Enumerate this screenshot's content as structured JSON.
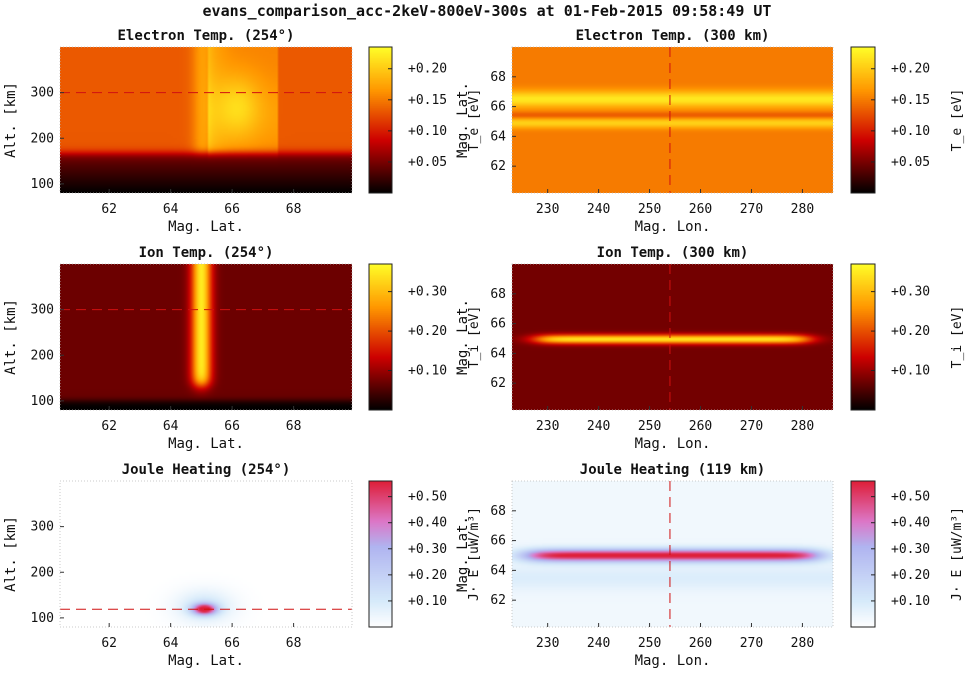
{
  "title": "evans_comparison_acc-2keV-800eV-300s at 01-Feb-2015 09:58:49 UT",
  "chart_data": [
    {
      "type": "heatmap",
      "title": "Electron Temp. (254°)",
      "xlabel": "Mag. Lat.",
      "ylabel": "Alt. [km]",
      "x_ticks": [
        62,
        64,
        66,
        68
      ],
      "y_ticks": [
        100,
        200,
        300
      ],
      "xlim": [
        60.4,
        69.9
      ],
      "ylim": [
        80,
        400
      ],
      "colormap": "hot",
      "colorbar": {
        "label": "T_e [eV]",
        "ticks": [
          "+0.05",
          "+0.10",
          "+0.15",
          "+0.20"
        ],
        "range": [
          0.0,
          0.235
        ]
      },
      "ref_line": {
        "axis": "y",
        "value": 300
      },
      "field": {
        "kind": "te_alt"
      }
    },
    {
      "type": "heatmap",
      "title": "Electron Temp. (300 km)",
      "xlabel": "Mag. Lon.",
      "ylabel": "Mag. Lat.",
      "x_ticks": [
        230,
        240,
        250,
        260,
        270,
        280
      ],
      "y_ticks": [
        62,
        64,
        66,
        68
      ],
      "xlim": [
        223,
        286
      ],
      "ylim": [
        60.2,
        70
      ],
      "colormap": "hot",
      "colorbar": {
        "label": "T_e [eV]",
        "ticks": [
          "+0.05",
          "+0.10",
          "+0.15",
          "+0.20"
        ],
        "range": [
          0.0,
          0.235
        ]
      },
      "ref_line": {
        "axis": "x",
        "value": 254
      },
      "field": {
        "kind": "te_lon"
      }
    },
    {
      "type": "heatmap",
      "title": "Ion Temp. (254°)",
      "xlabel": "Mag. Lat.",
      "ylabel": "Alt. [km]",
      "x_ticks": [
        62,
        64,
        66,
        68
      ],
      "y_ticks": [
        100,
        200,
        300
      ],
      "xlim": [
        60.4,
        69.9
      ],
      "ylim": [
        80,
        400
      ],
      "colormap": "hot",
      "colorbar": {
        "label": "T_i [eV]",
        "ticks": [
          "+0.10",
          "+0.20",
          "+0.30"
        ],
        "range": [
          0.0,
          0.37
        ]
      },
      "ref_line": {
        "axis": "y",
        "value": 300
      },
      "field": {
        "kind": "ti_alt"
      }
    },
    {
      "type": "heatmap",
      "title": "Ion Temp. (300 km)",
      "xlabel": "Mag. Lon.",
      "ylabel": "Mag. Lat.",
      "x_ticks": [
        230,
        240,
        250,
        260,
        270,
        280
      ],
      "y_ticks": [
        62,
        64,
        66,
        68
      ],
      "xlim": [
        223,
        286
      ],
      "ylim": [
        60.2,
        70
      ],
      "colormap": "hot",
      "colorbar": {
        "label": "T_i [eV]",
        "ticks": [
          "+0.10",
          "+0.20",
          "+0.30"
        ],
        "range": [
          0.0,
          0.37
        ]
      },
      "ref_line": {
        "axis": "x",
        "value": 254
      },
      "field": {
        "kind": "ti_lon"
      }
    },
    {
      "type": "heatmap",
      "title": "Joule Heating (254°)",
      "xlabel": "Mag. Lat.",
      "ylabel": "Alt. [km]",
      "x_ticks": [
        62,
        64,
        66,
        68
      ],
      "y_ticks": [
        100,
        200,
        300
      ],
      "xlim": [
        60.4,
        69.9
      ],
      "ylim": [
        80,
        400
      ],
      "colormap": "cool-red",
      "colorbar": {
        "label": "J· E [uW/m³]",
        "ticks": [
          "+0.10",
          "+0.20",
          "+0.30",
          "+0.40",
          "+0.50"
        ],
        "range": [
          0.0,
          0.56
        ]
      },
      "ref_line": {
        "axis": "y",
        "value": 119
      },
      "field": {
        "kind": "jh_alt"
      }
    },
    {
      "type": "heatmap",
      "title": "Joule Heating (119 km)",
      "xlabel": "Mag. Lon.",
      "ylabel": "Mag. Lat.",
      "x_ticks": [
        230,
        240,
        250,
        260,
        270,
        280
      ],
      "y_ticks": [
        62,
        64,
        66,
        68
      ],
      "xlim": [
        223,
        286
      ],
      "ylim": [
        60.2,
        70
      ],
      "colormap": "cool-red",
      "colorbar": {
        "label": "J· E [uW/m³]",
        "ticks": [
          "+0.10",
          "+0.20",
          "+0.30",
          "+0.40",
          "+0.50"
        ],
        "range": [
          0.0,
          0.56
        ]
      },
      "ref_line": {
        "axis": "x",
        "value": 254
      },
      "field": {
        "kind": "jh_lon"
      }
    }
  ]
}
